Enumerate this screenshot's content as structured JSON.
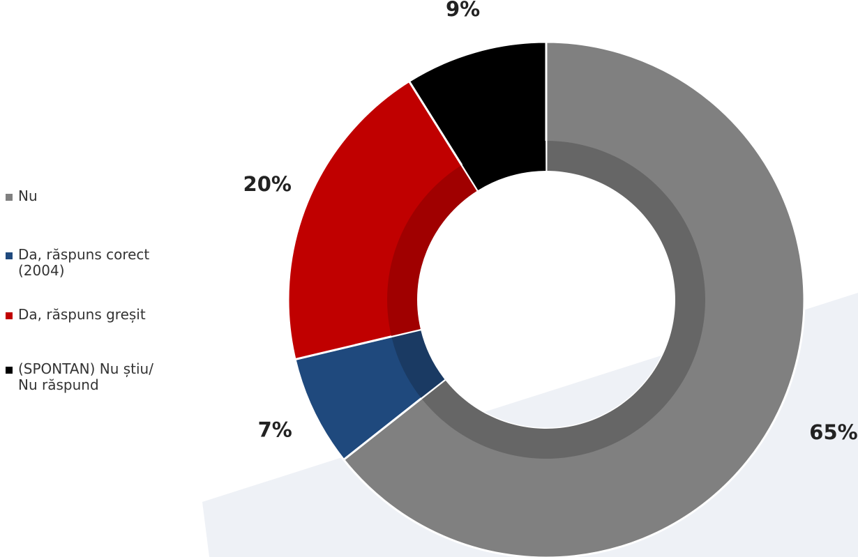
{
  "chart_data": {
    "type": "pie",
    "variant": "donut",
    "title": "",
    "slices": [
      {
        "name": "Nu",
        "value": 65,
        "label": "65%",
        "color": "#808080",
        "inner_color": "#666666"
      },
      {
        "name": "Da, răspuns corect (2004)",
        "value": 7,
        "label": "7%",
        "color": "#1f497d",
        "inner_color": "#1a3a63"
      },
      {
        "name": "Da, răspuns greșit",
        "value": 20,
        "label": "20%",
        "color": "#c00000",
        "inner_color": "#a00000"
      },
      {
        "name": "(SPONTAN) Nu știu/ Nu răspund",
        "value": 9,
        "label": "9%",
        "color": "#000000",
        "inner_color": "#000000"
      }
    ],
    "legend_position": "left"
  },
  "legend": {
    "items": [
      {
        "label": "Nu",
        "color": "#808080"
      },
      {
        "label": "Da, răspuns corect\n(2004)",
        "color": "#1f497d"
      },
      {
        "label": "Da, răspuns greșit",
        "color": "#c00000"
      },
      {
        "label": "(SPONTAN) Nu știu/\nNu răspund",
        "color": "#000000"
      }
    ]
  }
}
